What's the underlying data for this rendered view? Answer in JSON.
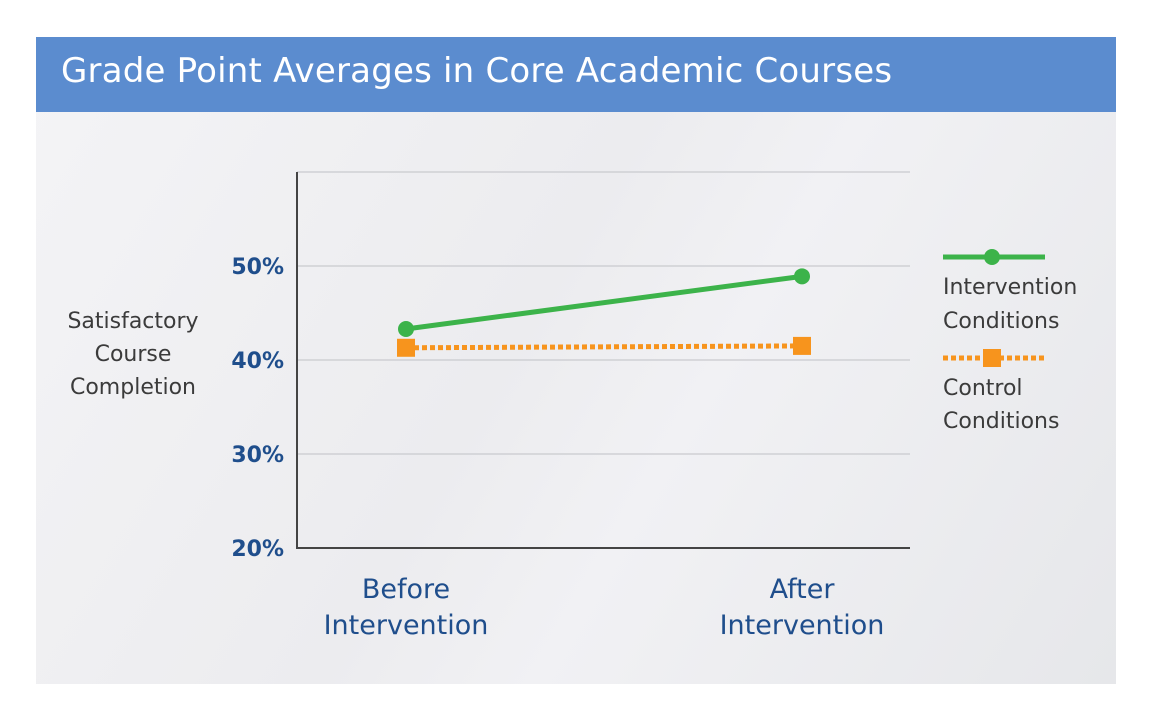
{
  "chart_data": {
    "type": "line",
    "title": "Grade Point Averages in Core Academic Courses",
    "ylabel_lines": [
      "Satisfactory",
      "Course",
      "Completion"
    ],
    "categories": [
      {
        "lines": [
          "Before",
          "Intervention"
        ]
      },
      {
        "lines": [
          "After",
          "Intervention"
        ]
      }
    ],
    "yticks": [
      {
        "value": 20,
        "label": "20%"
      },
      {
        "value": 30,
        "label": "30%"
      },
      {
        "value": 40,
        "label": "40%"
      },
      {
        "value": 50,
        "label": "50%"
      }
    ],
    "gridlines": [
      30,
      40,
      50,
      60
    ],
    "ylim": [
      20,
      60
    ],
    "grid": true,
    "legend_placement": "right",
    "series": [
      {
        "name_lines": [
          "Intervention",
          "Conditions"
        ],
        "values": [
          43.3,
          48.9
        ],
        "color": "#3cb34a",
        "marker": "circle",
        "line_style": "solid"
      },
      {
        "name_lines": [
          "Control",
          "Conditions"
        ],
        "values": [
          41.3,
          41.5
        ],
        "color": "#f7941d",
        "marker": "square",
        "line_style": "dotted"
      }
    ]
  },
  "colors": {
    "title_bar": "#5b8ccf",
    "tick_label": "#1f4e8c",
    "axis": "#444444",
    "grid": "#cfd0d4"
  }
}
